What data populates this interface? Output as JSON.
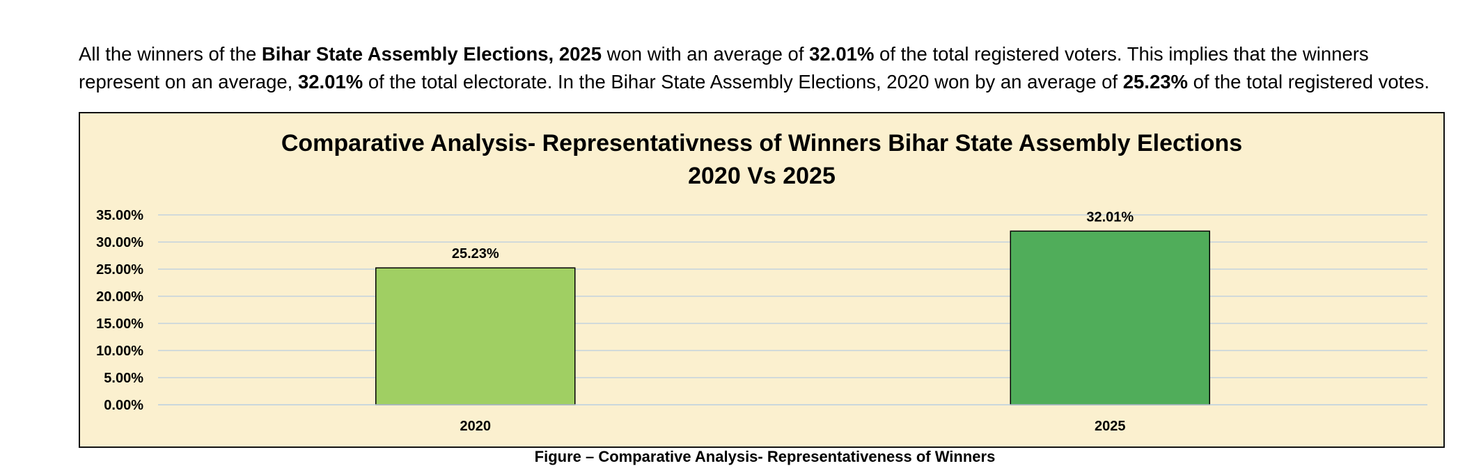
{
  "intro": {
    "seg1": "All the winners of the ",
    "seg2": "Bihar State Assembly Elections, 2025",
    "seg3": " won with an average of ",
    "seg4": "32.01%",
    "seg5": " of the total registered voters. This implies that the winners represent on an average, ",
    "seg6": "32.01%",
    "seg7": " of the total electorate. In the Bihar State Assembly Elections, 2020 won by an average of ",
    "seg8": "25.23%",
    "seg9": " of the total registered votes."
  },
  "chart_data": {
    "type": "bar",
    "title_line1": "Comparative Analysis- Representativness of Winners Bihar State Assembly Elections",
    "title_line2": "2020 Vs 2025",
    "categories": [
      "2020",
      "2025"
    ],
    "values": [
      25.23,
      32.01
    ],
    "data_labels": [
      "25.23%",
      "32.01%"
    ],
    "y_ticks": [
      "0.00%",
      "5.00%",
      "10.00%",
      "15.00%",
      "20.00%",
      "25.00%",
      "30.00%",
      "35.00%"
    ],
    "ylim": [
      0,
      35
    ],
    "grid": true,
    "legend": "none",
    "bar_colors": [
      "#a0cf63",
      "#50ad5a"
    ],
    "background_color": "#fbf0cf",
    "gridline_color": "#c3d3de"
  },
  "caption": "Figure – Comparative Analysis- Representativeness of Winners"
}
